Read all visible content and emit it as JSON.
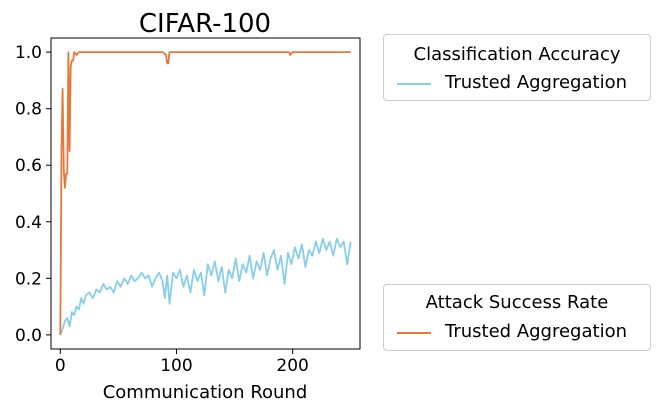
{
  "chart_data": {
    "type": "line",
    "title": "CIFAR-100",
    "xlabel": "Communication Round",
    "ylabel": "",
    "xlim": [
      -8,
      258
    ],
    "ylim": [
      -0.05,
      1.05
    ],
    "xticks": [
      0,
      100,
      200
    ],
    "yticks": [
      0.0,
      0.2,
      0.4,
      0.6,
      0.8,
      1.0
    ],
    "xtick_labels": [
      "0",
      "100",
      "200"
    ],
    "ytick_labels": [
      "0.0",
      "0.2",
      "0.4",
      "0.6",
      "0.8",
      "1.0"
    ],
    "grid": false,
    "series": [
      {
        "name": "Trusted Aggregation",
        "metric": "Classification Accuracy",
        "color": "#87ceeb",
        "x": [
          0,
          2,
          4,
          6,
          8,
          10,
          12,
          14,
          16,
          18,
          20,
          22,
          25,
          28,
          31,
          34,
          37,
          40,
          43,
          46,
          49,
          52,
          55,
          58,
          61,
          64,
          67,
          70,
          73,
          76,
          79,
          82,
          85,
          88,
          90,
          92,
          94,
          97,
          100,
          103,
          106,
          109,
          112,
          115,
          118,
          121,
          124,
          127,
          130,
          133,
          136,
          139,
          142,
          145,
          148,
          151,
          154,
          157,
          160,
          163,
          166,
          169,
          172,
          175,
          178,
          181,
          184,
          187,
          190,
          193,
          196,
          199,
          202,
          205,
          208,
          211,
          214,
          217,
          220,
          223,
          226,
          229,
          232,
          235,
          238,
          241,
          244,
          247,
          250
        ],
        "y": [
          0.0,
          0.02,
          0.05,
          0.06,
          0.03,
          0.08,
          0.07,
          0.1,
          0.09,
          0.13,
          0.11,
          0.14,
          0.15,
          0.13,
          0.16,
          0.15,
          0.18,
          0.16,
          0.17,
          0.15,
          0.19,
          0.17,
          0.2,
          0.18,
          0.21,
          0.19,
          0.2,
          0.22,
          0.2,
          0.21,
          0.17,
          0.2,
          0.22,
          0.19,
          0.13,
          0.21,
          0.11,
          0.22,
          0.2,
          0.23,
          0.17,
          0.21,
          0.15,
          0.23,
          0.19,
          0.22,
          0.14,
          0.25,
          0.21,
          0.26,
          0.19,
          0.24,
          0.15,
          0.23,
          0.2,
          0.27,
          0.19,
          0.25,
          0.22,
          0.28,
          0.2,
          0.26,
          0.23,
          0.29,
          0.21,
          0.27,
          0.3,
          0.23,
          0.28,
          0.18,
          0.29,
          0.25,
          0.31,
          0.27,
          0.32,
          0.24,
          0.3,
          0.28,
          0.33,
          0.29,
          0.34,
          0.3,
          0.33,
          0.28,
          0.34,
          0.31,
          0.33,
          0.25,
          0.33
        ]
      },
      {
        "name": "Trusted Aggregation",
        "metric": "Attack Success Rate",
        "color": "#e8773a",
        "x": [
          0,
          1,
          2,
          3,
          4,
          5,
          6,
          7,
          8,
          9,
          10,
          11,
          12,
          14,
          16,
          20,
          30,
          40,
          50,
          60,
          70,
          80,
          88,
          91,
          92,
          93,
          94,
          96,
          100,
          110,
          120,
          150,
          180,
          195,
          197,
          198,
          200,
          202,
          210,
          230,
          250
        ],
        "y": [
          0.0,
          0.65,
          0.87,
          0.58,
          0.52,
          0.57,
          0.57,
          1.0,
          0.65,
          0.95,
          0.97,
          0.97,
          1.0,
          0.99,
          1.0,
          1.0,
          1.0,
          1.0,
          1.0,
          1.0,
          1.0,
          1.0,
          1.0,
          0.99,
          0.96,
          0.96,
          1.0,
          1.0,
          1.0,
          1.0,
          1.0,
          1.0,
          1.0,
          1.0,
          1.0,
          0.99,
          1.0,
          1.0,
          1.0,
          1.0,
          1.0
        ]
      }
    ],
    "legends": [
      {
        "title": "Classification Accuracy",
        "entries": [
          "Trusted Aggregation"
        ],
        "color": "#87ceeb",
        "placement": "upper right, outside plot"
      },
      {
        "title": "Attack Success Rate",
        "entries": [
          "Trusted Aggregation"
        ],
        "color": "#e8773a",
        "placement": "lower right, outside plot"
      }
    ]
  }
}
